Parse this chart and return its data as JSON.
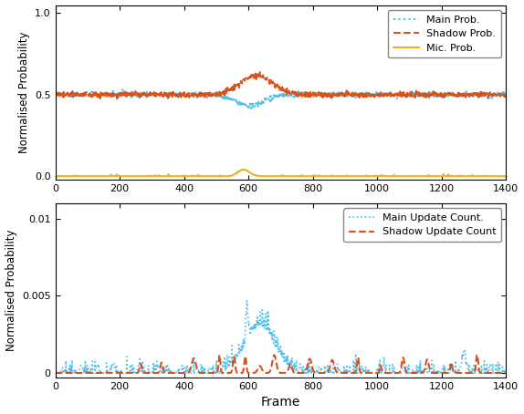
{
  "top_plot": {
    "ylabel": "Normalised Probability",
    "xlim": [
      0,
      1400
    ],
    "ylim": [
      -0.02,
      1.05
    ],
    "yticks": [
      0,
      0.5,
      1
    ],
    "xticks": [
      0,
      200,
      400,
      600,
      800,
      1000,
      1200,
      1400
    ],
    "legend": [
      {
        "label": "Main Prob.",
        "color": "#4DBEEE",
        "linestyle": "dotted",
        "linewidth": 1.5,
        "markersize": 3
      },
      {
        "label": "Shadow Prob.",
        "color": "#D95319",
        "linestyle": "dashed",
        "linewidth": 1.5
      },
      {
        "label": "Mic. Prob.",
        "color": "#EDB120",
        "linestyle": "solid",
        "linewidth": 1.5
      }
    ]
  },
  "bottom_plot": {
    "ylabel": "Normalised Probability",
    "xlabel": "Frame",
    "xlim": [
      0,
      1400
    ],
    "ylim": [
      -0.0003,
      0.011
    ],
    "yticks": [
      0,
      0.005,
      0.01
    ],
    "xticks": [
      0,
      200,
      400,
      600,
      800,
      1000,
      1200,
      1400
    ],
    "legend": [
      {
        "label": "Main Update Count.",
        "color": "#4DBEEE",
        "linestyle": "dotted",
        "linewidth": 1.2
      },
      {
        "label": "Shadow Update Count",
        "color": "#D95319",
        "linestyle": "dashed",
        "linewidth": 1.5
      }
    ]
  },
  "random_seed": 42,
  "n_frames": 1400,
  "figsize": [
    5.74,
    4.54
  ],
  "dpi": 100
}
